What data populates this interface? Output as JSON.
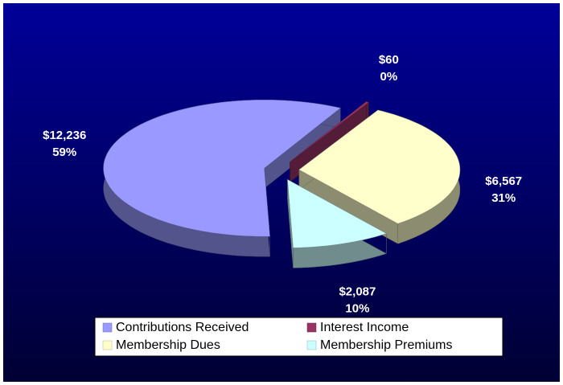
{
  "chart_data": {
    "type": "pie",
    "categories": [
      "Contributions Received",
      "Interest Income",
      "Membership Dues",
      "Membership Premiums"
    ],
    "values": [
      12236,
      60,
      6567,
      2087
    ],
    "value_labels": [
      "$12,236",
      "$60",
      "$6,567",
      "$2,087"
    ],
    "percent_labels": [
      "59%",
      "0%",
      "31%",
      "10%"
    ],
    "colors": [
      "#9999ff",
      "#993366",
      "#ffffcc",
      "#ccffff"
    ],
    "legend": "bottom"
  }
}
